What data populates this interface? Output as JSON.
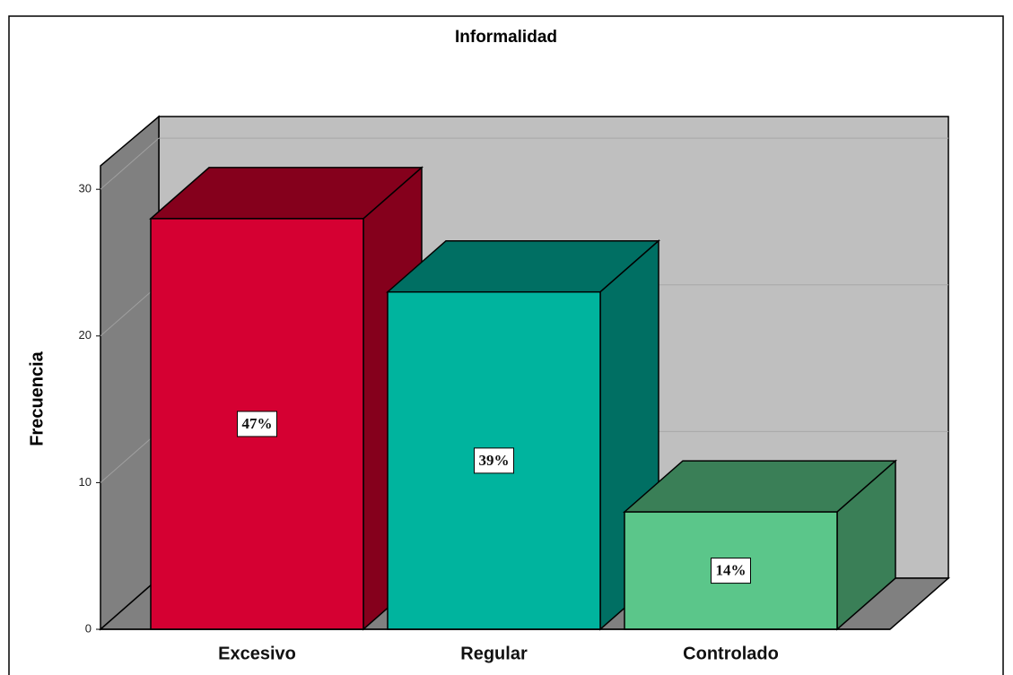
{
  "chart_data": {
    "type": "bar3d",
    "title": "Informalidad",
    "y_label": "Frecuencia",
    "categories": [
      "Excesivo",
      "Regular",
      "Controlado"
    ],
    "values": [
      28,
      23,
      8
    ],
    "percentage_labels": [
      "47%",
      "39%",
      "14%"
    ],
    "colors": [
      "#d50032",
      "#00b49e",
      "#5bc68a"
    ],
    "side_colors": [
      "#85001c",
      "#006f63",
      "#3a7f57"
    ],
    "ylim": [
      0,
      31.6
    ],
    "yticks": [
      0,
      10,
      20,
      30
    ],
    "grid": true
  }
}
